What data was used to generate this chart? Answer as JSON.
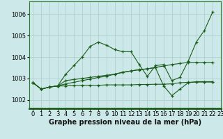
{
  "xlabel": "Graphe pression niveau de la mer (hPa)",
  "background_color": "#cce8e8",
  "grid_color": "#aacccc",
  "line_color": "#1a5c1a",
  "xlim": [
    -0.5,
    23
  ],
  "ylim": [
    1001.6,
    1006.6
  ],
  "yticks": [
    1002,
    1003,
    1004,
    1005,
    1006
  ],
  "xticks": [
    0,
    1,
    2,
    3,
    4,
    5,
    6,
    7,
    8,
    9,
    10,
    11,
    12,
    13,
    14,
    15,
    16,
    17,
    18,
    19,
    20,
    21,
    22,
    23
  ],
  "xtick_labels": [
    "0",
    "1",
    "2",
    "3",
    "4",
    "5",
    "6",
    "7",
    "8",
    "9",
    "10",
    "11",
    "12",
    "13",
    "14",
    "15",
    "16",
    "17",
    "18",
    "19",
    "20",
    "21",
    "22",
    "23"
  ],
  "series1_x": [
    0,
    1,
    2,
    3,
    4,
    5,
    6,
    7,
    8,
    9,
    10,
    11,
    12,
    13,
    14,
    15,
    16,
    17,
    18,
    19,
    20,
    21,
    22
  ],
  "series1_y": [
    1002.8,
    1002.5,
    1002.6,
    1002.65,
    1003.2,
    1003.6,
    1004.0,
    1004.5,
    1004.7,
    1004.55,
    1004.35,
    1004.25,
    1004.25,
    1003.65,
    1003.1,
    1003.6,
    1003.65,
    1002.9,
    1003.05,
    1003.8,
    1004.7,
    1005.25,
    1006.1
  ],
  "series2_x": [
    0,
    1,
    2,
    3,
    4,
    5,
    6,
    7,
    8,
    9,
    10,
    11,
    12,
    13,
    14,
    15,
    16,
    17,
    18,
    19,
    20,
    21,
    22
  ],
  "series2_y": [
    1002.8,
    1002.5,
    1002.6,
    1002.65,
    1002.9,
    1002.95,
    1003.0,
    1003.05,
    1003.1,
    1003.15,
    1003.2,
    1003.3,
    1003.35,
    1003.4,
    1003.45,
    1003.5,
    1002.65,
    1002.2,
    1002.5,
    1002.8,
    1002.85,
    1002.85,
    1002.85
  ],
  "series3_x": [
    0,
    1,
    2,
    3,
    4,
    5,
    6,
    7,
    8,
    9,
    10,
    11,
    12,
    13,
    14,
    15,
    16,
    17,
    18,
    19,
    20,
    21,
    22
  ],
  "series3_y": [
    1002.8,
    1002.5,
    1002.6,
    1002.65,
    1002.75,
    1002.82,
    1002.9,
    1002.97,
    1003.05,
    1003.1,
    1003.2,
    1003.28,
    1003.35,
    1003.42,
    1003.45,
    1003.52,
    1003.58,
    1003.65,
    1003.7,
    1003.75,
    1003.75,
    1003.75,
    1003.75
  ],
  "series4_x": [
    0,
    1,
    2,
    3,
    4,
    5,
    6,
    7,
    8,
    9,
    10,
    11,
    12,
    13,
    14,
    15,
    16,
    17,
    18,
    19,
    20,
    21,
    22
  ],
  "series4_y": [
    1002.8,
    1002.5,
    1002.6,
    1002.65,
    1002.65,
    1002.67,
    1002.68,
    1002.68,
    1002.68,
    1002.7,
    1002.7,
    1002.7,
    1002.7,
    1002.72,
    1002.72,
    1002.73,
    1002.73,
    1002.75,
    1002.8,
    1002.82,
    1002.83,
    1002.83,
    1002.83
  ],
  "border_color": "#2a7a2a",
  "xlabel_fontsize": 7,
  "tick_fontsize": 6
}
